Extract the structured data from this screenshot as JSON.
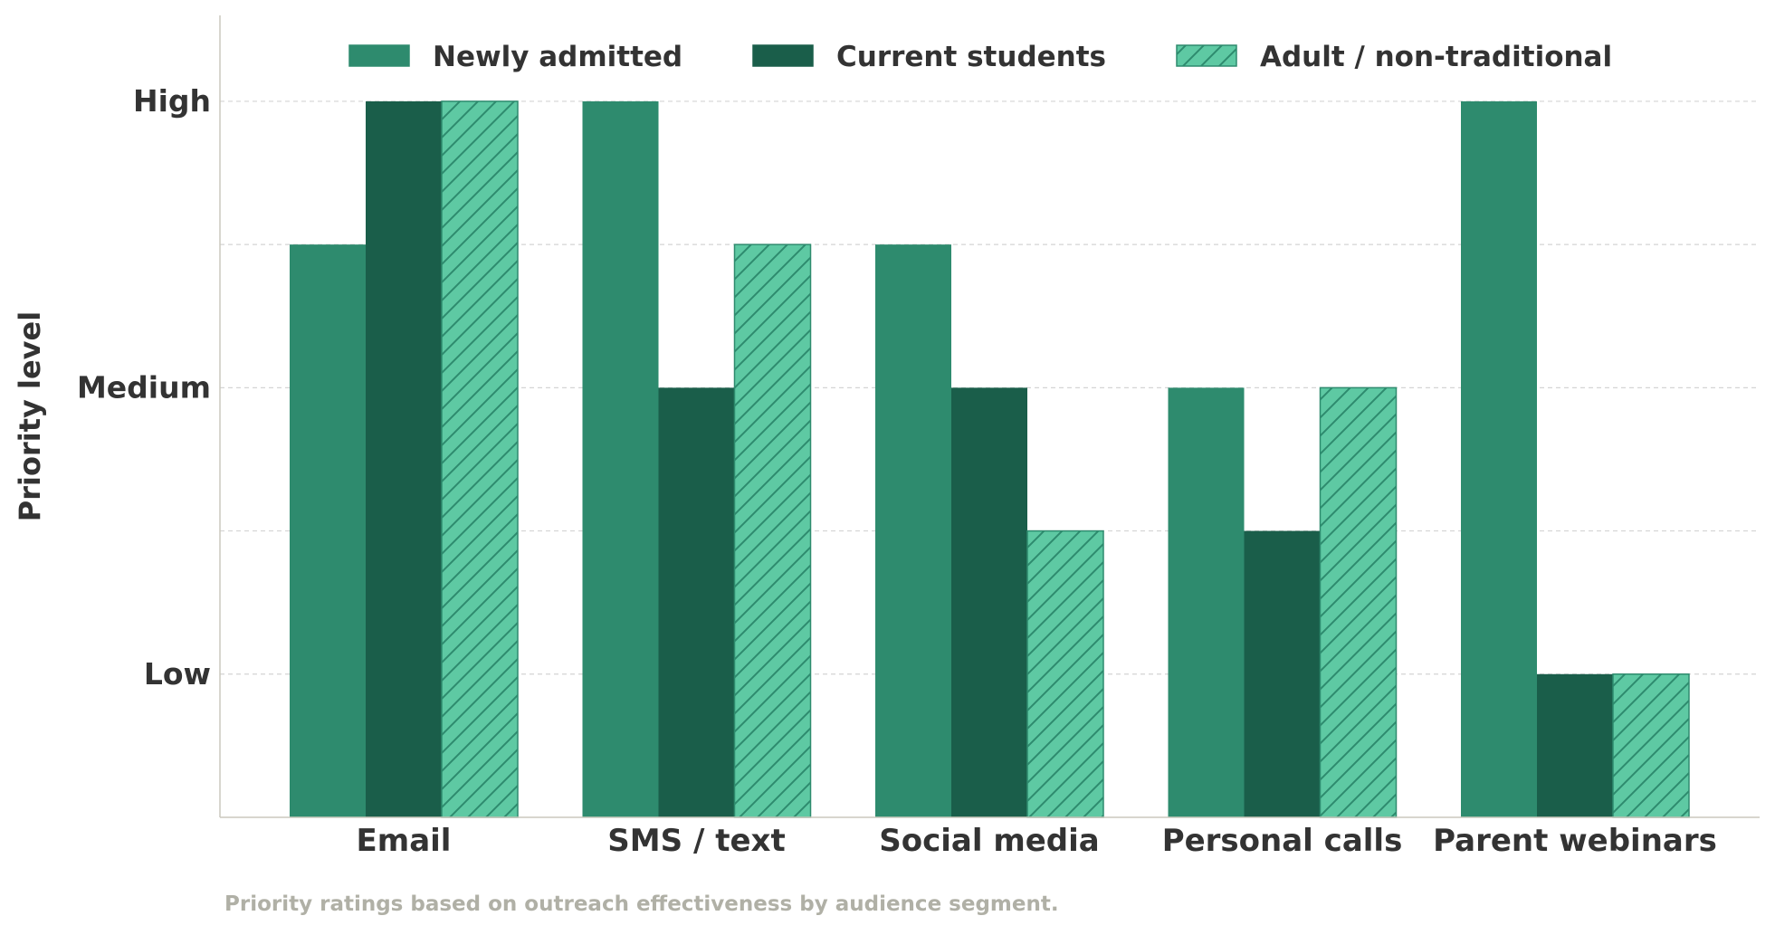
{
  "chart_data": {
    "type": "bar",
    "title": "",
    "xlabel": "",
    "ylabel": "Priority level",
    "categories": [
      "Email",
      "SMS / text",
      "Social media",
      "Personal calls",
      "Parent webinars"
    ],
    "series": [
      {
        "name": "Newly admitted",
        "values": [
          2.5,
          3,
          2.5,
          2,
          3
        ],
        "color": "#2e8b6e",
        "hatch": false
      },
      {
        "name": "Current students",
        "values": [
          3,
          2,
          2,
          1.5,
          1
        ],
        "color": "#1a5e4a",
        "hatch": false
      },
      {
        "name": "Adult / non-traditional",
        "values": [
          3,
          2.5,
          1.5,
          2,
          1
        ],
        "color": "#5ec9a3",
        "hatch": true
      }
    ],
    "yticks": [
      {
        "value": 1,
        "label": "Low"
      },
      {
        "value": 2,
        "label": "Medium"
      },
      {
        "value": 3,
        "label": "High"
      }
    ],
    "gridlines": [
      1,
      1.5,
      2,
      2.5,
      3
    ],
    "ylim": [
      0.5,
      3.3
    ],
    "grid": true,
    "legend_position": "top",
    "caption": "Priority ratings based on outreach effectiveness by audience segment."
  }
}
